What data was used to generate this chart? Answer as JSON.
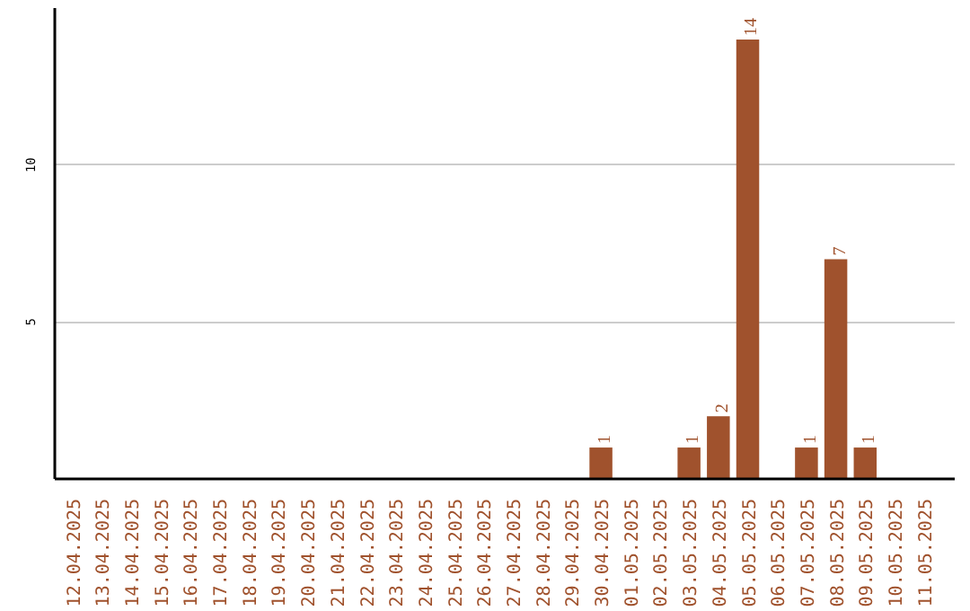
{
  "chart_data": {
    "type": "bar",
    "categories": [
      "12.04.2025",
      "13.04.2025",
      "14.04.2025",
      "15.04.2025",
      "16.04.2025",
      "17.04.2025",
      "18.04.2025",
      "19.04.2025",
      "20.04.2025",
      "21.04.2025",
      "22.04.2025",
      "23.04.2025",
      "24.04.2025",
      "25.04.2025",
      "26.04.2025",
      "27.04.2025",
      "28.04.2025",
      "29.04.2025",
      "30.04.2025",
      "01.05.2025",
      "02.05.2025",
      "03.05.2025",
      "04.05.2025",
      "05.05.2025",
      "06.05.2025",
      "07.05.2025",
      "08.05.2025",
      "09.05.2025",
      "10.05.2025",
      "11.05.2025"
    ],
    "values": [
      0,
      0,
      0,
      0,
      0,
      0,
      0,
      0,
      0,
      0,
      0,
      0,
      0,
      0,
      0,
      0,
      0,
      0,
      1,
      0,
      0,
      1,
      2,
      14,
      0,
      1,
      7,
      1,
      0,
      0
    ],
    "value_labels": [
      null,
      null,
      null,
      null,
      null,
      null,
      null,
      null,
      null,
      null,
      null,
      null,
      null,
      null,
      null,
      null,
      null,
      null,
      "1",
      null,
      null,
      "1",
      "2",
      "14",
      null,
      "1",
      "7",
      "1",
      null,
      null
    ],
    "color": "#a0522d",
    "ylim": [
      0,
      15
    ],
    "yticks": [
      5,
      10
    ],
    "grid": "y"
  }
}
